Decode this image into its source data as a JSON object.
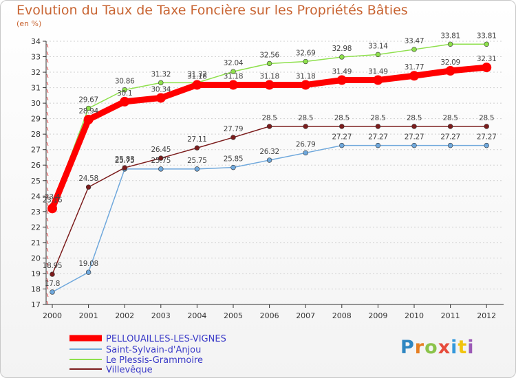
{
  "header": {
    "title": "Evolution du Taux de Taxe Foncière sur les Propriétés Bâties",
    "unit": "(en %)"
  },
  "logo": {
    "text": "Proxiti"
  },
  "chart_data": {
    "type": "line",
    "title": "Evolution du Taux de Taxe Foncière sur les Propriétés Bâties",
    "ylabel": "(en %)",
    "xlabel": "",
    "x": [
      "2000",
      "2001",
      "2002",
      "2003",
      "2004",
      "2005",
      "2006",
      "2007",
      "2008",
      "2009",
      "2010",
      "2011",
      "2012"
    ],
    "ylim": [
      17,
      34
    ],
    "yticks": [
      17,
      18,
      19,
      20,
      21,
      22,
      23,
      24,
      25,
      26,
      27,
      28,
      29,
      30,
      31,
      32,
      33,
      34
    ],
    "grid": "dotted horizontal",
    "legend": "bottom-left",
    "series": [
      {
        "name": "PELLOUAILLES-LES-VIGNES",
        "color": "#ff0000",
        "emphasis": true,
        "values": [
          23.2,
          28.94,
          30.1,
          30.34,
          31.18,
          31.18,
          31.18,
          31.18,
          31.49,
          31.49,
          31.77,
          32.09,
          32.31
        ],
        "labels": [
          "23.16",
          "28.94",
          "30.1",
          "30.34",
          "31.18",
          "31.18",
          "31.18",
          "31.18",
          "31.49",
          "31.49",
          "31.77",
          "32.09",
          "32.31"
        ]
      },
      {
        "name": "Saint-Sylvain-d'Anjou",
        "color": "#6fa8dc",
        "values": [
          17.8,
          19.08,
          25.75,
          25.75,
          25.75,
          25.85,
          26.32,
          26.79,
          27.27,
          27.27,
          27.27,
          27.27,
          27.27
        ],
        "labels": [
          "17.8",
          "19.08",
          "25.75",
          "25.75",
          "25.75",
          "25.85",
          "26.32",
          "26.79",
          "27.27",
          "27.27",
          "27.27",
          "27.27",
          "27.27"
        ]
      },
      {
        "name": "Le Plessis-Grammoire",
        "color": "#8ee04c",
        "values": [
          23.4,
          29.67,
          30.86,
          31.32,
          31.32,
          32.04,
          32.56,
          32.69,
          32.98,
          33.14,
          33.47,
          33.81,
          33.81
        ],
        "labels": [
          "23.4",
          "29.67",
          "30.86",
          "31.32",
          "31.32",
          "32.04",
          "32.56",
          "32.69",
          "32.98",
          "33.14",
          "33.47",
          "33.81",
          "33.81"
        ]
      },
      {
        "name": "Villevêque",
        "color": "#7b1c1c",
        "values": [
          18.95,
          24.58,
          25.83,
          26.45,
          27.11,
          27.79,
          28.5,
          28.5,
          28.5,
          28.5,
          28.5,
          28.5,
          28.5
        ],
        "labels": [
          "18.95",
          "24.58",
          "25.83",
          "26.45",
          "27.11",
          "27.79",
          "28.5",
          "28.5",
          "28.5",
          "28.5",
          "28.5",
          "28.5",
          "28.5"
        ]
      }
    ]
  }
}
